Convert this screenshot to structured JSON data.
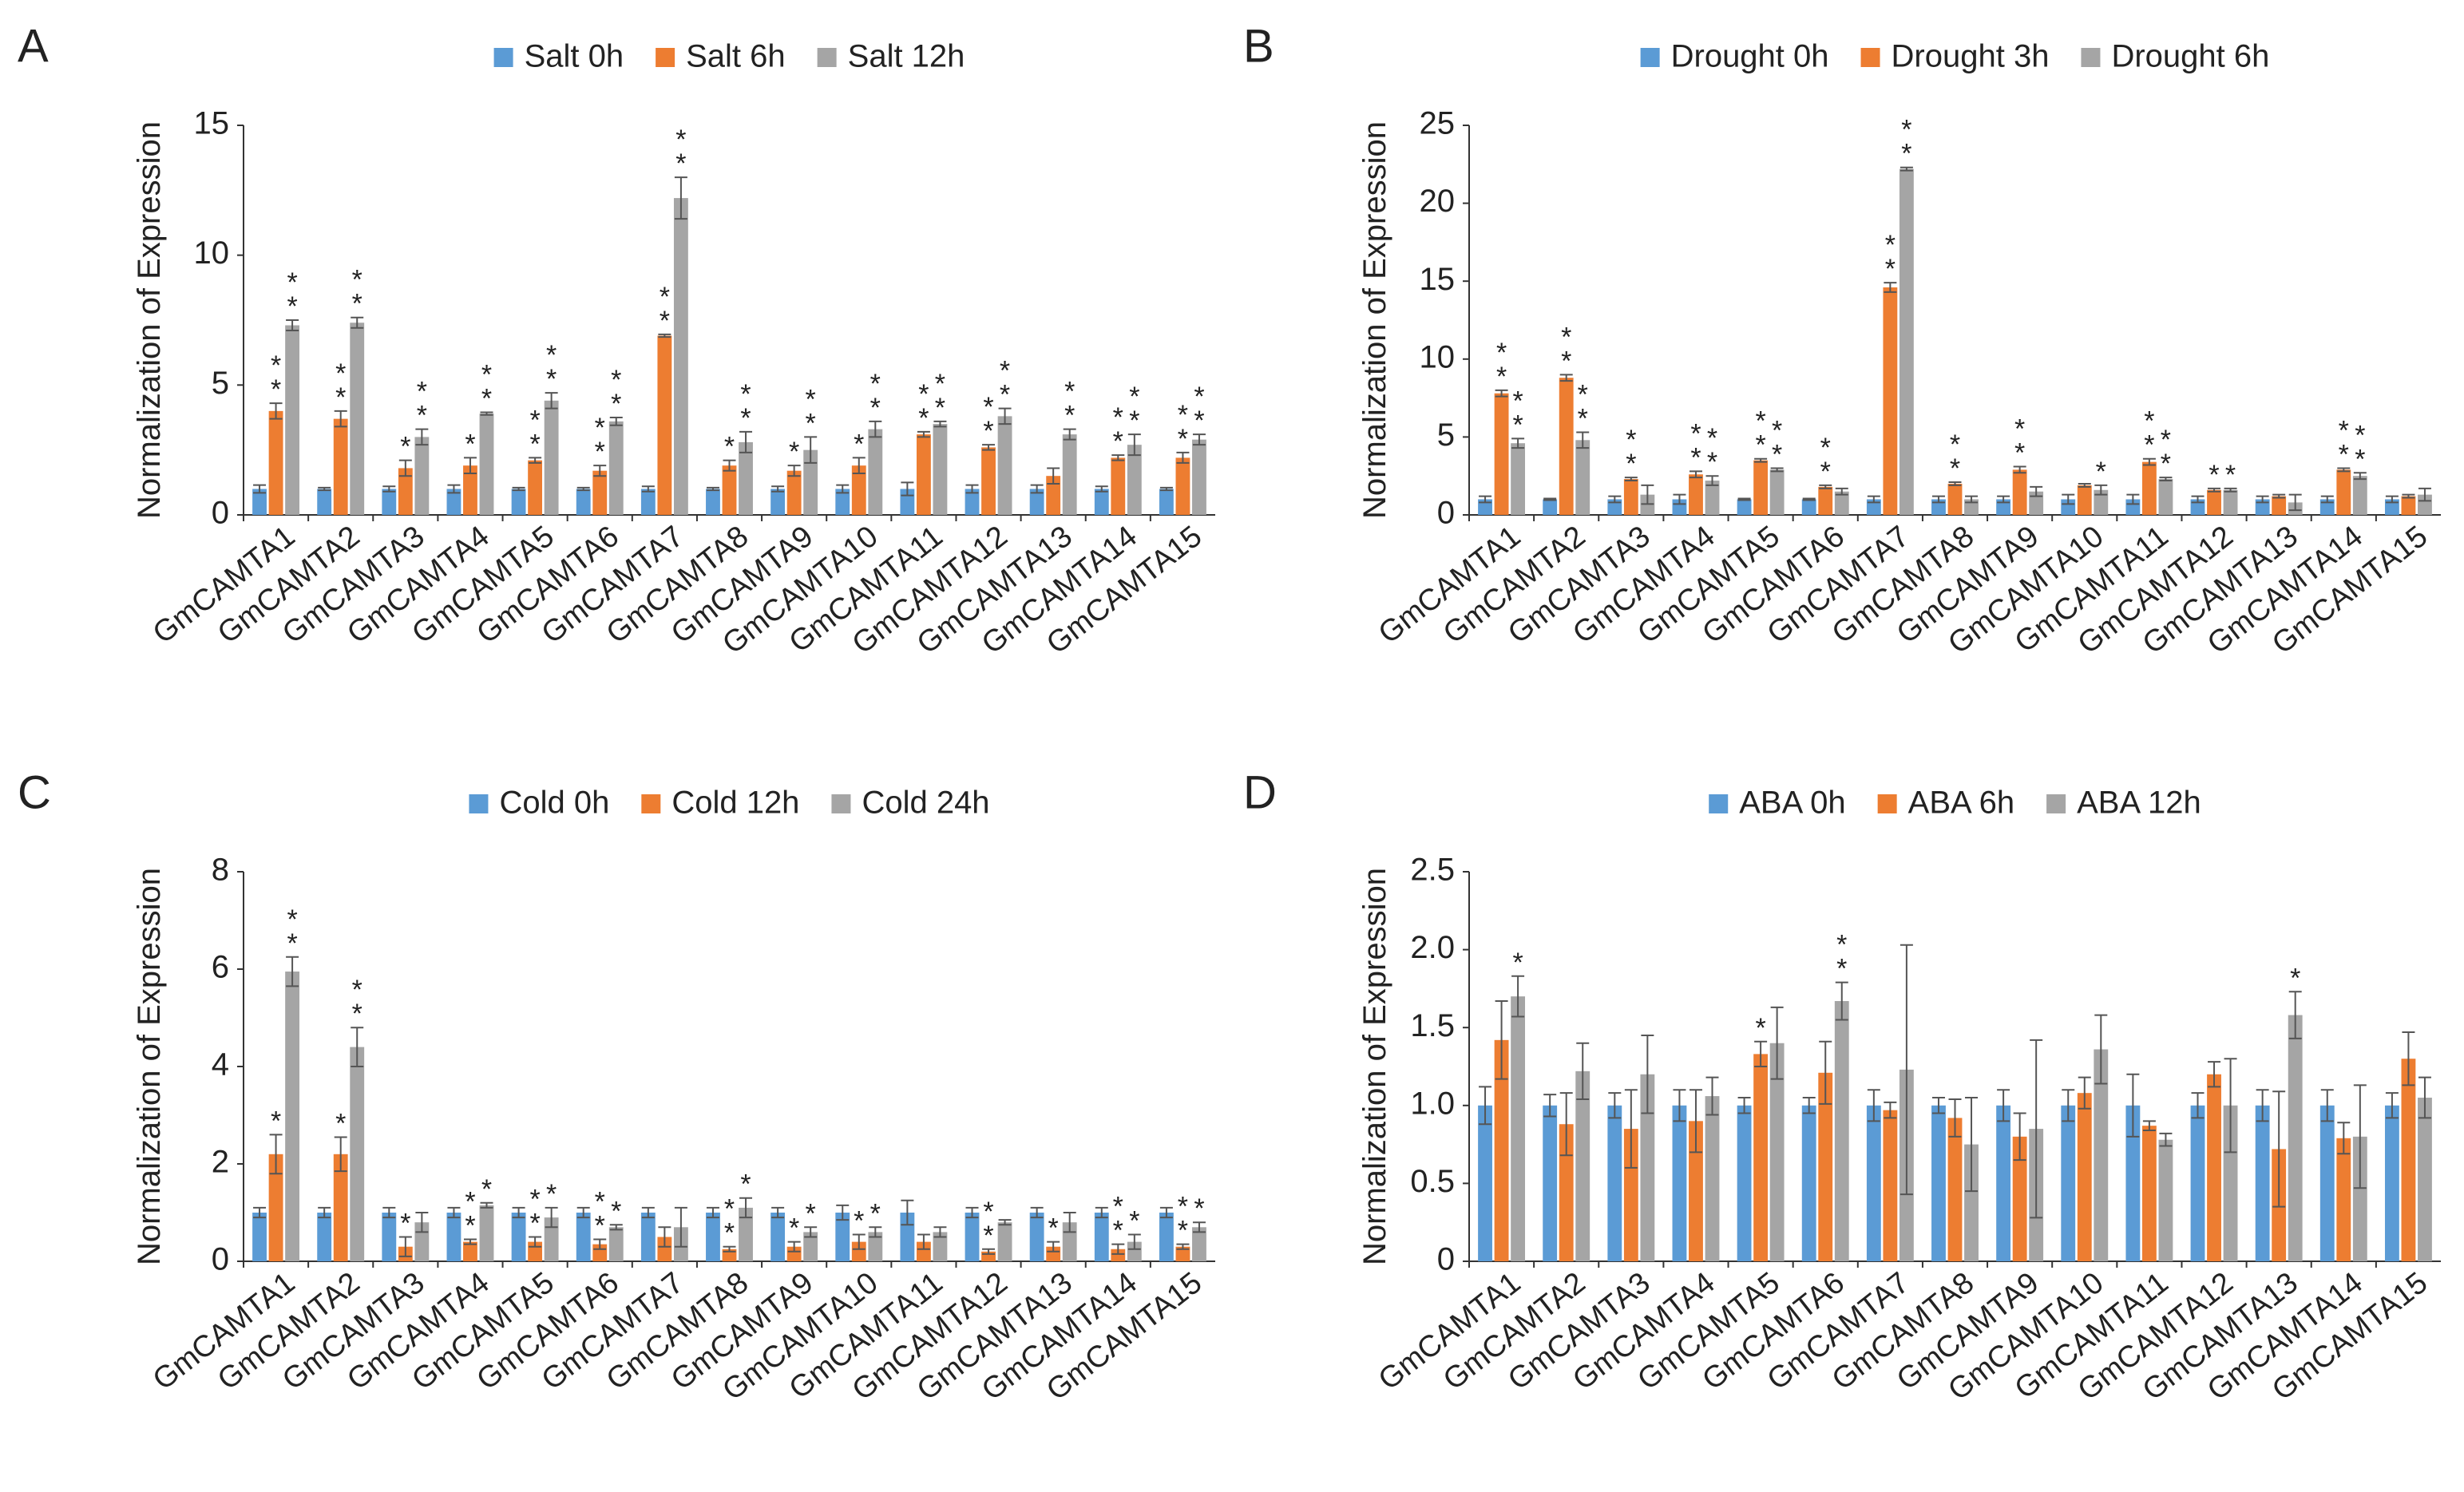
{
  "chart_data": [
    {
      "type": "bar",
      "label": "A",
      "ylabel": "Normalization of Expression",
      "categories": [
        "GmCAMTA1",
        "GmCAMTA2",
        "GmCAMTA3",
        "GmCAMTA4",
        "GmCAMTA5",
        "GmCAMTA6",
        "GmCAMTA7",
        "GmCAMTA8",
        "GmCAMTA9",
        "GmCAMTA10",
        "GmCAMTA11",
        "GmCAMTA12",
        "GmCAMTA13",
        "GmCAMTA14",
        "GmCAMTA15"
      ],
      "ylim": [
        0,
        15
      ],
      "yticks": [
        0,
        5,
        10,
        15
      ],
      "series": [
        {
          "name": "Salt 0h",
          "color": "#5b9bd5",
          "values": [
            1,
            1,
            1,
            1,
            1,
            1,
            1,
            1,
            1,
            1,
            1,
            1,
            1,
            1,
            1
          ],
          "errors": [
            0.15,
            0.05,
            0.1,
            0.15,
            0.05,
            0.05,
            0.1,
            0.05,
            0.1,
            0.15,
            0.25,
            0.15,
            0.15,
            0.1,
            0.05
          ]
        },
        {
          "name": "Salt 6h",
          "color": "#ed7d31",
          "values": [
            4.0,
            3.7,
            1.8,
            1.9,
            2.1,
            1.7,
            6.9,
            1.9,
            1.7,
            1.9,
            3.1,
            2.6,
            1.5,
            2.2,
            2.2
          ],
          "errors": [
            0.3,
            0.3,
            0.3,
            0.3,
            0.1,
            0.2,
            0.05,
            0.2,
            0.2,
            0.3,
            0.1,
            0.1,
            0.3,
            0.1,
            0.2
          ],
          "annotations": [
            "**",
            "**",
            "*",
            "*",
            "**",
            "**",
            "**",
            "*",
            "*",
            "*",
            "**",
            "**",
            null,
            "**",
            "**"
          ]
        },
        {
          "name": "Salt 12h",
          "color": "#a5a5a5",
          "values": [
            7.3,
            7.4,
            3.0,
            3.9,
            4.4,
            3.6,
            12.2,
            2.8,
            2.5,
            3.3,
            3.5,
            3.8,
            3.1,
            2.7,
            2.9
          ],
          "errors": [
            0.2,
            0.2,
            0.3,
            0.05,
            0.3,
            0.15,
            0.8,
            0.4,
            0.5,
            0.3,
            0.1,
            0.3,
            0.2,
            0.4,
            0.2
          ],
          "annotations": [
            "**",
            "**",
            "**",
            "**",
            "**",
            "**",
            "**",
            "**",
            "**",
            "**",
            "**",
            "**",
            "**",
            "**",
            "**"
          ]
        }
      ]
    },
    {
      "type": "bar",
      "label": "B",
      "ylabel": "Normalization of Expression",
      "categories": [
        "GmCAMTA1",
        "GmCAMTA2",
        "GmCAMTA3",
        "GmCAMTA4",
        "GmCAMTA5",
        "GmCAMTA6",
        "GmCAMTA7",
        "GmCAMTA8",
        "GmCAMTA9",
        "GmCAMTA10",
        "GmCAMTA11",
        "GmCAMTA12",
        "GmCAMTA13",
        "GmCAMTA14",
        "GmCAMTA15"
      ],
      "ylim": [
        0,
        25
      ],
      "yticks": [
        0,
        5,
        10,
        15,
        20,
        25
      ],
      "series": [
        {
          "name": "Drought 0h",
          "color": "#5b9bd5",
          "values": [
            1,
            1,
            1,
            1,
            1,
            1,
            1,
            1,
            1,
            1,
            1,
            1,
            1,
            1,
            1
          ],
          "errors": [
            0.2,
            0.05,
            0.2,
            0.3,
            0.05,
            0.05,
            0.2,
            0.2,
            0.2,
            0.3,
            0.3,
            0.2,
            0.2,
            0.2,
            0.2
          ]
        },
        {
          "name": "Drought 3h",
          "color": "#ed7d31",
          "values": [
            7.8,
            8.8,
            2.3,
            2.6,
            3.5,
            1.8,
            14.6,
            2.0,
            2.9,
            1.9,
            3.4,
            1.6,
            1.2,
            2.9,
            1.2
          ],
          "errors": [
            0.2,
            0.2,
            0.1,
            0.2,
            0.1,
            0.1,
            0.3,
            0.1,
            0.2,
            0.1,
            0.2,
            0.1,
            0.1,
            0.1,
            0.1
          ],
          "annotations": [
            "**",
            "**",
            "**",
            "**",
            "**",
            "**",
            "**",
            "**",
            "**",
            null,
            "**",
            "*",
            null,
            "**",
            null
          ]
        },
        {
          "name": "Drought 6h",
          "color": "#a5a5a5",
          "values": [
            4.6,
            4.8,
            1.3,
            2.2,
            2.9,
            1.5,
            22.2,
            1.0,
            1.5,
            1.6,
            2.3,
            1.6,
            0.8,
            2.5,
            1.3
          ],
          "errors": [
            0.3,
            0.5,
            0.6,
            0.3,
            0.1,
            0.2,
            0.1,
            0.2,
            0.3,
            0.3,
            0.1,
            0.1,
            0.5,
            0.2,
            0.4
          ],
          "annotations": [
            "**",
            "**",
            null,
            "**",
            "**",
            null,
            "**",
            null,
            null,
            "*",
            "**",
            "*",
            null,
            "**",
            null
          ]
        }
      ]
    },
    {
      "type": "bar",
      "label": "C",
      "ylabel": "Normalization of Expression",
      "categories": [
        "GmCAMTA1",
        "GmCAMTA2",
        "GmCAMTA3",
        "GmCAMTA4",
        "GmCAMTA5",
        "GmCAMTA6",
        "GmCAMTA7",
        "GmCAMTA8",
        "GmCAMTA9",
        "GmCAMTA10",
        "GmCAMTA11",
        "GmCAMTA12",
        "GmCAMTA13",
        "GmCAMTA14",
        "GmCAMTA15"
      ],
      "ylim": [
        0,
        8
      ],
      "yticks": [
        0,
        2,
        4,
        6,
        8
      ],
      "series": [
        {
          "name": "Cold 0h",
          "color": "#5b9bd5",
          "values": [
            1,
            1,
            1,
            1,
            1,
            1,
            1,
            1,
            1,
            1,
            1,
            1,
            1,
            1,
            1
          ],
          "errors": [
            0.1,
            0.1,
            0.1,
            0.1,
            0.1,
            0.1,
            0.1,
            0.1,
            0.1,
            0.15,
            0.25,
            0.1,
            0.1,
            0.1,
            0.1
          ]
        },
        {
          "name": "Cold 12h",
          "color": "#ed7d31",
          "values": [
            2.2,
            2.2,
            0.3,
            0.4,
            0.4,
            0.35,
            0.5,
            0.25,
            0.3,
            0.4,
            0.4,
            0.2,
            0.3,
            0.25,
            0.3
          ],
          "errors": [
            0.4,
            0.35,
            0.2,
            0.05,
            0.1,
            0.1,
            0.2,
            0.05,
            0.1,
            0.15,
            0.15,
            0.05,
            0.1,
            0.1,
            0.05
          ],
          "annotations": [
            "*",
            "*",
            "*",
            "**",
            "**",
            "**",
            null,
            "**",
            "*",
            "*",
            null,
            "**",
            "*",
            "**",
            "**"
          ]
        },
        {
          "name": "Cold 24h",
          "color": "#a5a5a5",
          "values": [
            5.95,
            4.4,
            0.8,
            1.15,
            0.9,
            0.7,
            0.7,
            1.1,
            0.6,
            0.6,
            0.6,
            0.8,
            0.8,
            0.4,
            0.7
          ],
          "errors": [
            0.3,
            0.4,
            0.2,
            0.05,
            0.2,
            0.05,
            0.4,
            0.2,
            0.1,
            0.1,
            0.1,
            0.05,
            0.2,
            0.15,
            0.1
          ],
          "annotations": [
            "**",
            "**",
            null,
            "*",
            "*",
            "*",
            null,
            "*",
            "*",
            "*",
            null,
            null,
            null,
            "*",
            "*"
          ]
        }
      ]
    },
    {
      "type": "bar",
      "label": "D",
      "ylabel": "Normalization of Expression",
      "categories": [
        "GmCAMTA1",
        "GmCAMTA2",
        "GmCAMTA3",
        "GmCAMTA4",
        "GmCAMTA5",
        "GmCAMTA6",
        "GmCAMTA7",
        "GmCAMTA8",
        "GmCAMTA9",
        "GmCAMTA10",
        "GmCAMTA11",
        "GmCAMTA12",
        "GmCAMTA13",
        "GmCAMTA14",
        "GmCAMTA15"
      ],
      "ylim": [
        0,
        2.5
      ],
      "yticks": [
        0,
        0.5,
        {
          "value": 1,
          "label": "1.0"
        },
        1.5,
        {
          "value": 2,
          "label": "2.0"
        },
        2.5
      ],
      "series": [
        {
          "name": "ABA 0h",
          "color": "#5b9bd5",
          "values": [
            1,
            1,
            1,
            1,
            1,
            1,
            1,
            1,
            1,
            1,
            1,
            1,
            1,
            1,
            1
          ],
          "errors": [
            0.12,
            0.07,
            0.08,
            0.1,
            0.05,
            0.05,
            0.1,
            0.05,
            0.1,
            0.1,
            0.2,
            0.08,
            0.1,
            0.1,
            0.08
          ]
        },
        {
          "name": "ABA 6h",
          "color": "#ed7d31",
          "values": [
            1.42,
            0.88,
            0.85,
            0.9,
            1.33,
            1.21,
            0.97,
            0.92,
            0.8,
            1.08,
            0.87,
            1.2,
            0.72,
            0.79,
            1.3
          ],
          "errors": [
            0.25,
            0.2,
            0.25,
            0.2,
            0.08,
            0.2,
            0.05,
            0.12,
            0.15,
            0.1,
            0.03,
            0.08,
            0.37,
            0.1,
            0.17
          ],
          "annotations": [
            null,
            null,
            null,
            null,
            "*",
            null,
            null,
            null,
            null,
            null,
            null,
            null,
            null,
            null,
            null
          ]
        },
        {
          "name": "ABA 12h",
          "color": "#a5a5a5",
          "values": [
            1.7,
            1.22,
            1.2,
            1.06,
            1.4,
            1.67,
            1.23,
            0.75,
            0.85,
            1.36,
            0.78,
            1.0,
            1.58,
            0.8,
            1.05
          ],
          "errors": [
            0.13,
            0.18,
            0.25,
            0.12,
            0.23,
            0.12,
            0.8,
            0.3,
            0.57,
            0.22,
            0.04,
            0.3,
            0.15,
            0.33,
            0.13
          ],
          "annotations": [
            "*",
            null,
            null,
            null,
            null,
            "**",
            null,
            null,
            null,
            null,
            null,
            null,
            "*",
            null,
            null
          ]
        }
      ]
    }
  ]
}
